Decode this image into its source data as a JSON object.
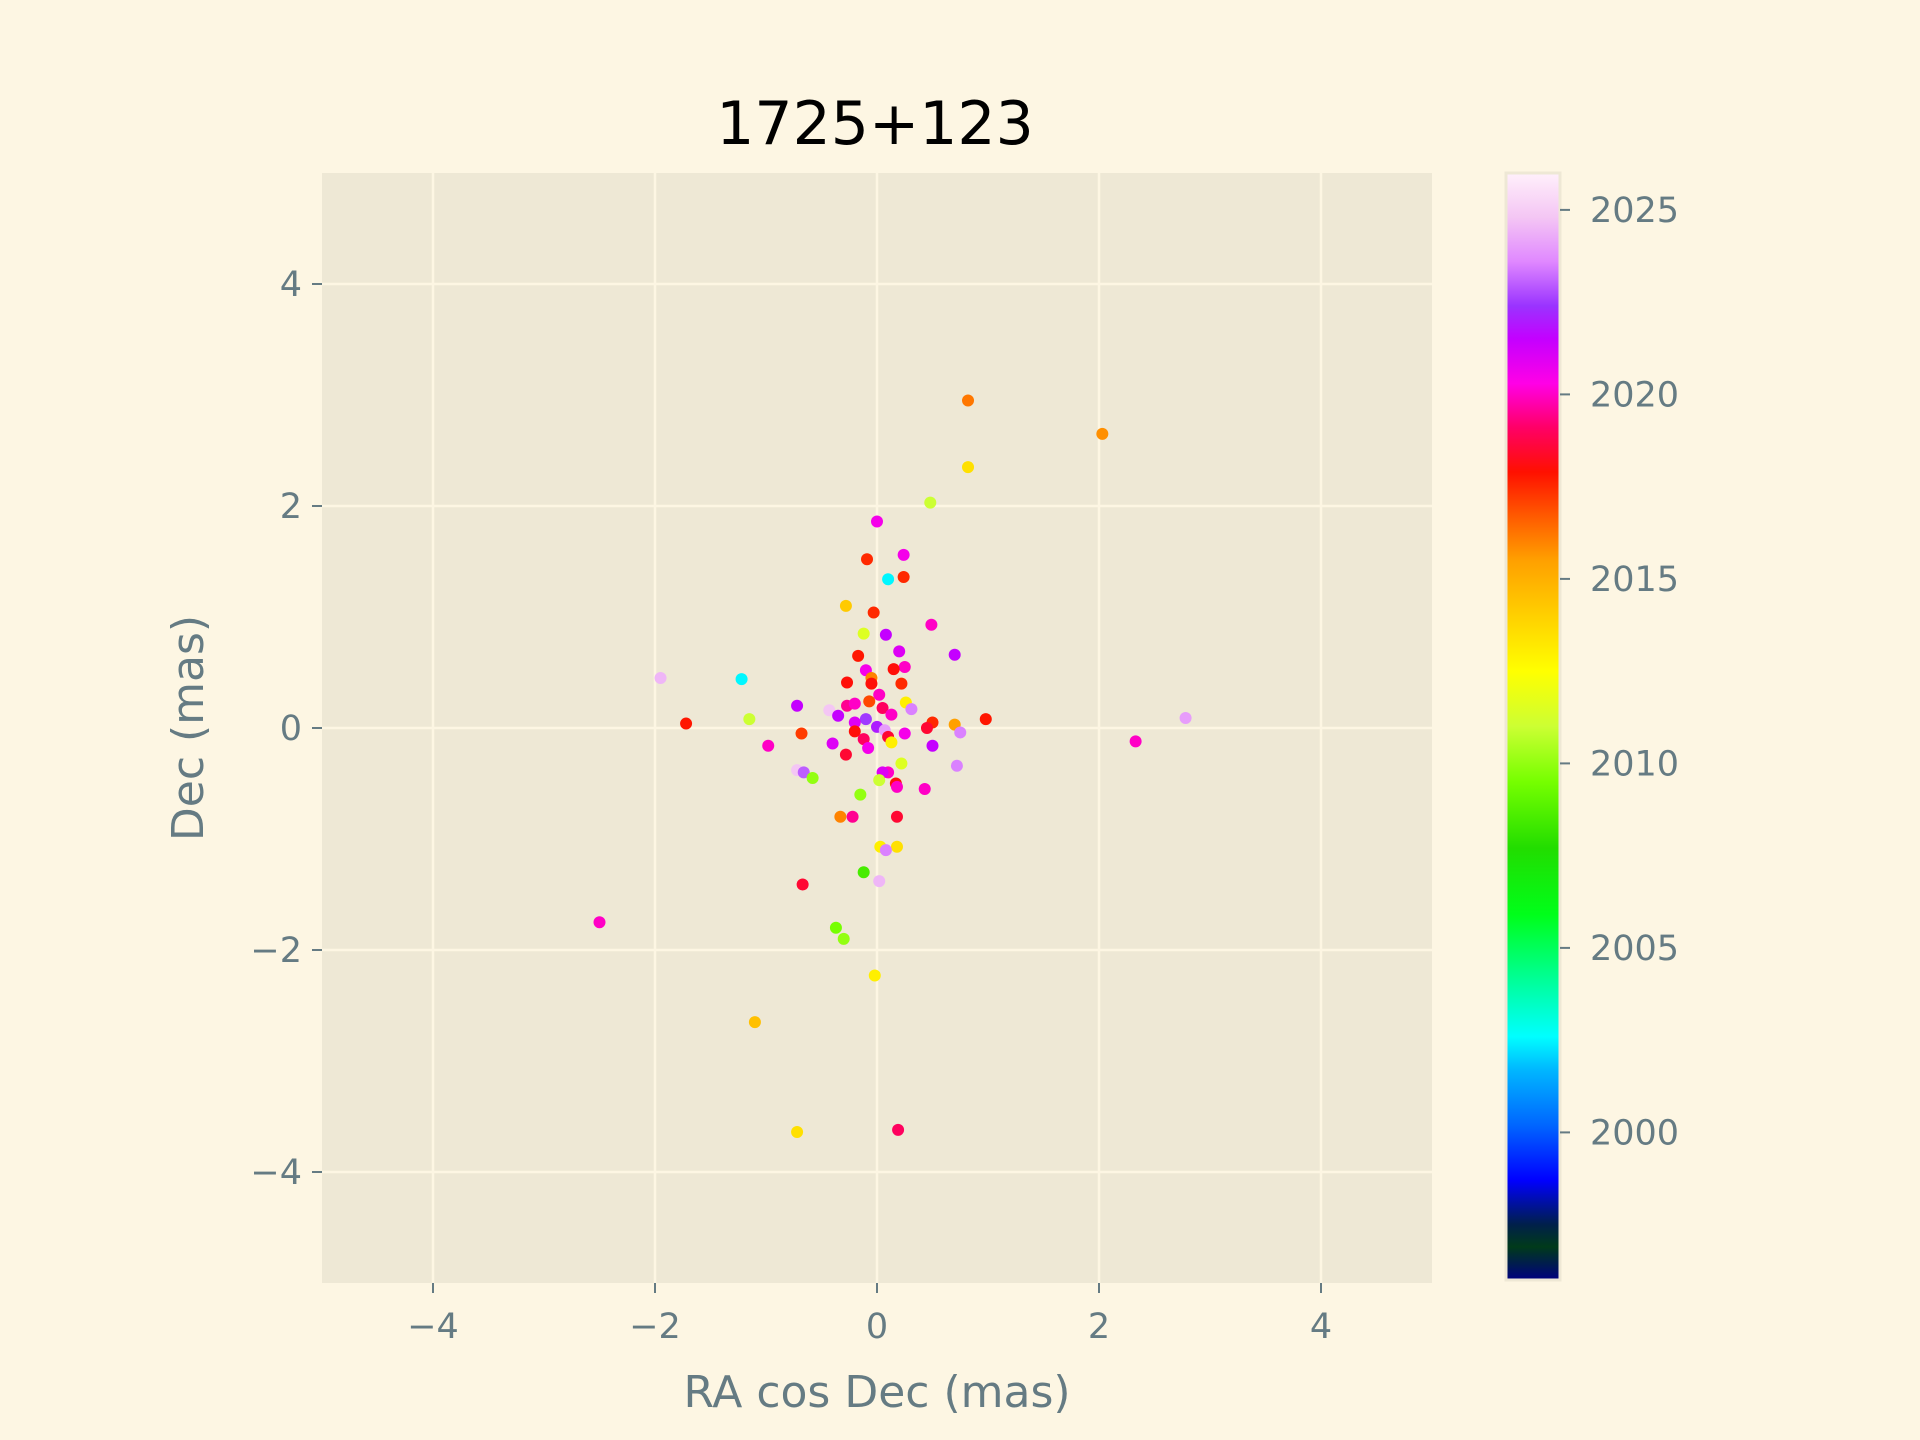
{
  "chart_data": {
    "type": "scatter",
    "title": "1725+123",
    "xlabel": "RA cos Dec (mas)",
    "ylabel": "Dec (mas)",
    "xlim": [
      -5,
      5
    ],
    "ylim": [
      -5,
      5
    ],
    "xticks": [
      -4,
      -2,
      0,
      2,
      4
    ],
    "yticks": [
      -4,
      -2,
      0,
      2,
      4
    ],
    "grid": true,
    "colorbar": {
      "label": "",
      "range": [
        1996,
        2026
      ],
      "ticks": [
        2000,
        2005,
        2010,
        2015,
        2020,
        2025
      ],
      "colormap": "gist_ncar"
    },
    "points": [
      {
        "x": 0.82,
        "y": 2.95,
        "t": 2016.2
      },
      {
        "x": 2.03,
        "y": 2.65,
        "t": 2015.8
      },
      {
        "x": 0.82,
        "y": 2.35,
        "t": 2013.5
      },
      {
        "x": 0.48,
        "y": 2.03,
        "t": 2011.0
      },
      {
        "x": 0.0,
        "y": 1.86,
        "t": 2020.5
      },
      {
        "x": 0.24,
        "y": 1.56,
        "t": 2020.5
      },
      {
        "x": -0.09,
        "y": 1.52,
        "t": 2017.5
      },
      {
        "x": 0.24,
        "y": 1.36,
        "t": 2017.5
      },
      {
        "x": 0.1,
        "y": 1.34,
        "t": 2002.5
      },
      {
        "x": -0.28,
        "y": 1.1,
        "t": 2014.2
      },
      {
        "x": -0.03,
        "y": 1.04,
        "t": 2017.5
      },
      {
        "x": 0.49,
        "y": 0.93,
        "t": 2020.0
      },
      {
        "x": -0.12,
        "y": 0.85,
        "t": 2011.5
      },
      {
        "x": 0.08,
        "y": 0.84,
        "t": 2021.5
      },
      {
        "x": 0.2,
        "y": 0.69,
        "t": 2021.0
      },
      {
        "x": 0.7,
        "y": 0.66,
        "t": 2021.5
      },
      {
        "x": -0.17,
        "y": 0.65,
        "t": 2017.8
      },
      {
        "x": 0.25,
        "y": 0.55,
        "t": 2020.0
      },
      {
        "x": 0.15,
        "y": 0.53,
        "t": 2018.0
      },
      {
        "x": -0.1,
        "y": 0.52,
        "t": 2020.5
      },
      {
        "x": -0.05,
        "y": 0.45,
        "t": 2016.0
      },
      {
        "x": -1.95,
        "y": 0.45,
        "t": 2024.5
      },
      {
        "x": -1.22,
        "y": 0.44,
        "t": 2002.5
      },
      {
        "x": 0.22,
        "y": 0.4,
        "t": 2017.5
      },
      {
        "x": -0.27,
        "y": 0.41,
        "t": 2018.0
      },
      {
        "x": -0.05,
        "y": 0.4,
        "t": 2018.0
      },
      {
        "x": 0.02,
        "y": 0.3,
        "t": 2020.0
      },
      {
        "x": -0.07,
        "y": 0.24,
        "t": 2017.0
      },
      {
        "x": 0.26,
        "y": 0.23,
        "t": 2013.0
      },
      {
        "x": -0.72,
        "y": 0.2,
        "t": 2021.5
      },
      {
        "x": -0.27,
        "y": 0.2,
        "t": 2019.5
      },
      {
        "x": 0.05,
        "y": 0.18,
        "t": 2019.0
      },
      {
        "x": -0.2,
        "y": 0.22,
        "t": 2020.0
      },
      {
        "x": 0.31,
        "y": 0.17,
        "t": 2023.5
      },
      {
        "x": -0.43,
        "y": 0.16,
        "t": 2024.8
      },
      {
        "x": -0.35,
        "y": 0.11,
        "t": 2021.5
      },
      {
        "x": 0.13,
        "y": 0.12,
        "t": 2020.0
      },
      {
        "x": -0.1,
        "y": 0.08,
        "t": 2022.5
      },
      {
        "x": 2.78,
        "y": 0.09,
        "t": 2024.0
      },
      {
        "x": -1.15,
        "y": 0.08,
        "t": 2011.0
      },
      {
        "x": 0.98,
        "y": 0.08,
        "t": 2017.8
      },
      {
        "x": -1.72,
        "y": 0.04,
        "t": 2017.8
      },
      {
        "x": 0.5,
        "y": 0.05,
        "t": 2017.5
      },
      {
        "x": 0.7,
        "y": 0.03,
        "t": 2015.5
      },
      {
        "x": -0.2,
        "y": 0.05,
        "t": 2021.0
      },
      {
        "x": 0.45,
        "y": 0.0,
        "t": 2018.5
      },
      {
        "x": 0.0,
        "y": 0.01,
        "t": 2022.0
      },
      {
        "x": 0.75,
        "y": -0.04,
        "t": 2023.5
      },
      {
        "x": 0.25,
        "y": -0.05,
        "t": 2020.5
      },
      {
        "x": -0.2,
        "y": -0.03,
        "t": 2018.0
      },
      {
        "x": 0.07,
        "y": -0.02,
        "t": 2024.0
      },
      {
        "x": -0.68,
        "y": -0.05,
        "t": 2017.2
      },
      {
        "x": 0.1,
        "y": -0.08,
        "t": 2018.5
      },
      {
        "x": -0.12,
        "y": -0.1,
        "t": 2019.0
      },
      {
        "x": -0.4,
        "y": -0.14,
        "t": 2021.0
      },
      {
        "x": 2.33,
        "y": -0.12,
        "t": 2020.0
      },
      {
        "x": -0.98,
        "y": -0.16,
        "t": 2020.0
      },
      {
        "x": 0.5,
        "y": -0.16,
        "t": 2021.5
      },
      {
        "x": -0.08,
        "y": -0.18,
        "t": 2020.5
      },
      {
        "x": 0.13,
        "y": -0.13,
        "t": 2013.0
      },
      {
        "x": -0.28,
        "y": -0.24,
        "t": 2018.5
      },
      {
        "x": 0.22,
        "y": -0.32,
        "t": 2011.5
      },
      {
        "x": 0.72,
        "y": -0.34,
        "t": 2023.5
      },
      {
        "x": -0.72,
        "y": -0.38,
        "t": 2024.8
      },
      {
        "x": -0.66,
        "y": -0.4,
        "t": 2023.0
      },
      {
        "x": 0.1,
        "y": -0.4,
        "t": 2020.0
      },
      {
        "x": 0.05,
        "y": -0.4,
        "t": 2021.0
      },
      {
        "x": -0.58,
        "y": -0.45,
        "t": 2010.0
      },
      {
        "x": 0.02,
        "y": -0.47,
        "t": 2011.0
      },
      {
        "x": 0.17,
        "y": -0.5,
        "t": 2018.0
      },
      {
        "x": 0.18,
        "y": -0.53,
        "t": 2020.0
      },
      {
        "x": 0.43,
        "y": -0.55,
        "t": 2020.0
      },
      {
        "x": -0.15,
        "y": -0.6,
        "t": 2010.0
      },
      {
        "x": -0.33,
        "y": -0.8,
        "t": 2016.0
      },
      {
        "x": -0.22,
        "y": -0.8,
        "t": 2019.5
      },
      {
        "x": 0.18,
        "y": -0.8,
        "t": 2018.5
      },
      {
        "x": 0.03,
        "y": -1.07,
        "t": 2013.0
      },
      {
        "x": 0.18,
        "y": -1.07,
        "t": 2013.5
      },
      {
        "x": 0.08,
        "y": -1.1,
        "t": 2023.5
      },
      {
        "x": -0.12,
        "y": -1.3,
        "t": 2008.5
      },
      {
        "x": 0.02,
        "y": -1.38,
        "t": 2024.5
      },
      {
        "x": -0.67,
        "y": -1.41,
        "t": 2018.5
      },
      {
        "x": -2.5,
        "y": -1.75,
        "t": 2020.0
      },
      {
        "x": -0.37,
        "y": -1.8,
        "t": 2009.5
      },
      {
        "x": -0.3,
        "y": -1.9,
        "t": 2010.0
      },
      {
        "x": -0.02,
        "y": -2.23,
        "t": 2013.0
      },
      {
        "x": -1.1,
        "y": -2.65,
        "t": 2014.5
      },
      {
        "x": -0.72,
        "y": -3.64,
        "t": 2013.5
      },
      {
        "x": 0.19,
        "y": -3.62,
        "t": 2019.0
      }
    ]
  }
}
